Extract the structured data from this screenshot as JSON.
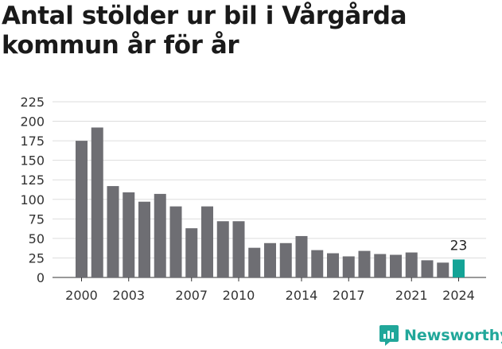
{
  "title": "Antal stölder ur bil i Vårgårda kommun år för år",
  "brand": {
    "name": "Newsworthy"
  },
  "colors": {
    "bar": "#6e6e73",
    "highlight": "#14a396",
    "grid": "#dddddd",
    "brand": "#21a79a"
  },
  "chart_data": {
    "type": "bar",
    "title": "Antal stölder ur bil i Vårgårda kommun år för år",
    "xlabel": "",
    "ylabel": "",
    "categories": [
      "2000",
      "2001",
      "2002",
      "2003",
      "2004",
      "2005",
      "2006",
      "2007",
      "2008",
      "2009",
      "2010",
      "2011",
      "2012",
      "2013",
      "2014",
      "2015",
      "2016",
      "2017",
      "2018",
      "2019",
      "2020",
      "2021",
      "2022",
      "2023",
      "2024"
    ],
    "values": [
      175,
      192,
      117,
      109,
      97,
      107,
      91,
      63,
      91,
      72,
      72,
      38,
      44,
      44,
      53,
      35,
      31,
      27,
      34,
      30,
      29,
      32,
      22,
      19,
      23
    ],
    "ylim": [
      0,
      225
    ],
    "yticks": [
      0,
      25,
      50,
      75,
      100,
      125,
      150,
      175,
      200,
      225
    ],
    "xtick_labels": [
      "2000",
      "2003",
      "2007",
      "2010",
      "2014",
      "2017",
      "2021",
      "2024"
    ],
    "highlight": {
      "category": "2024",
      "label": "23"
    },
    "grid": true
  }
}
